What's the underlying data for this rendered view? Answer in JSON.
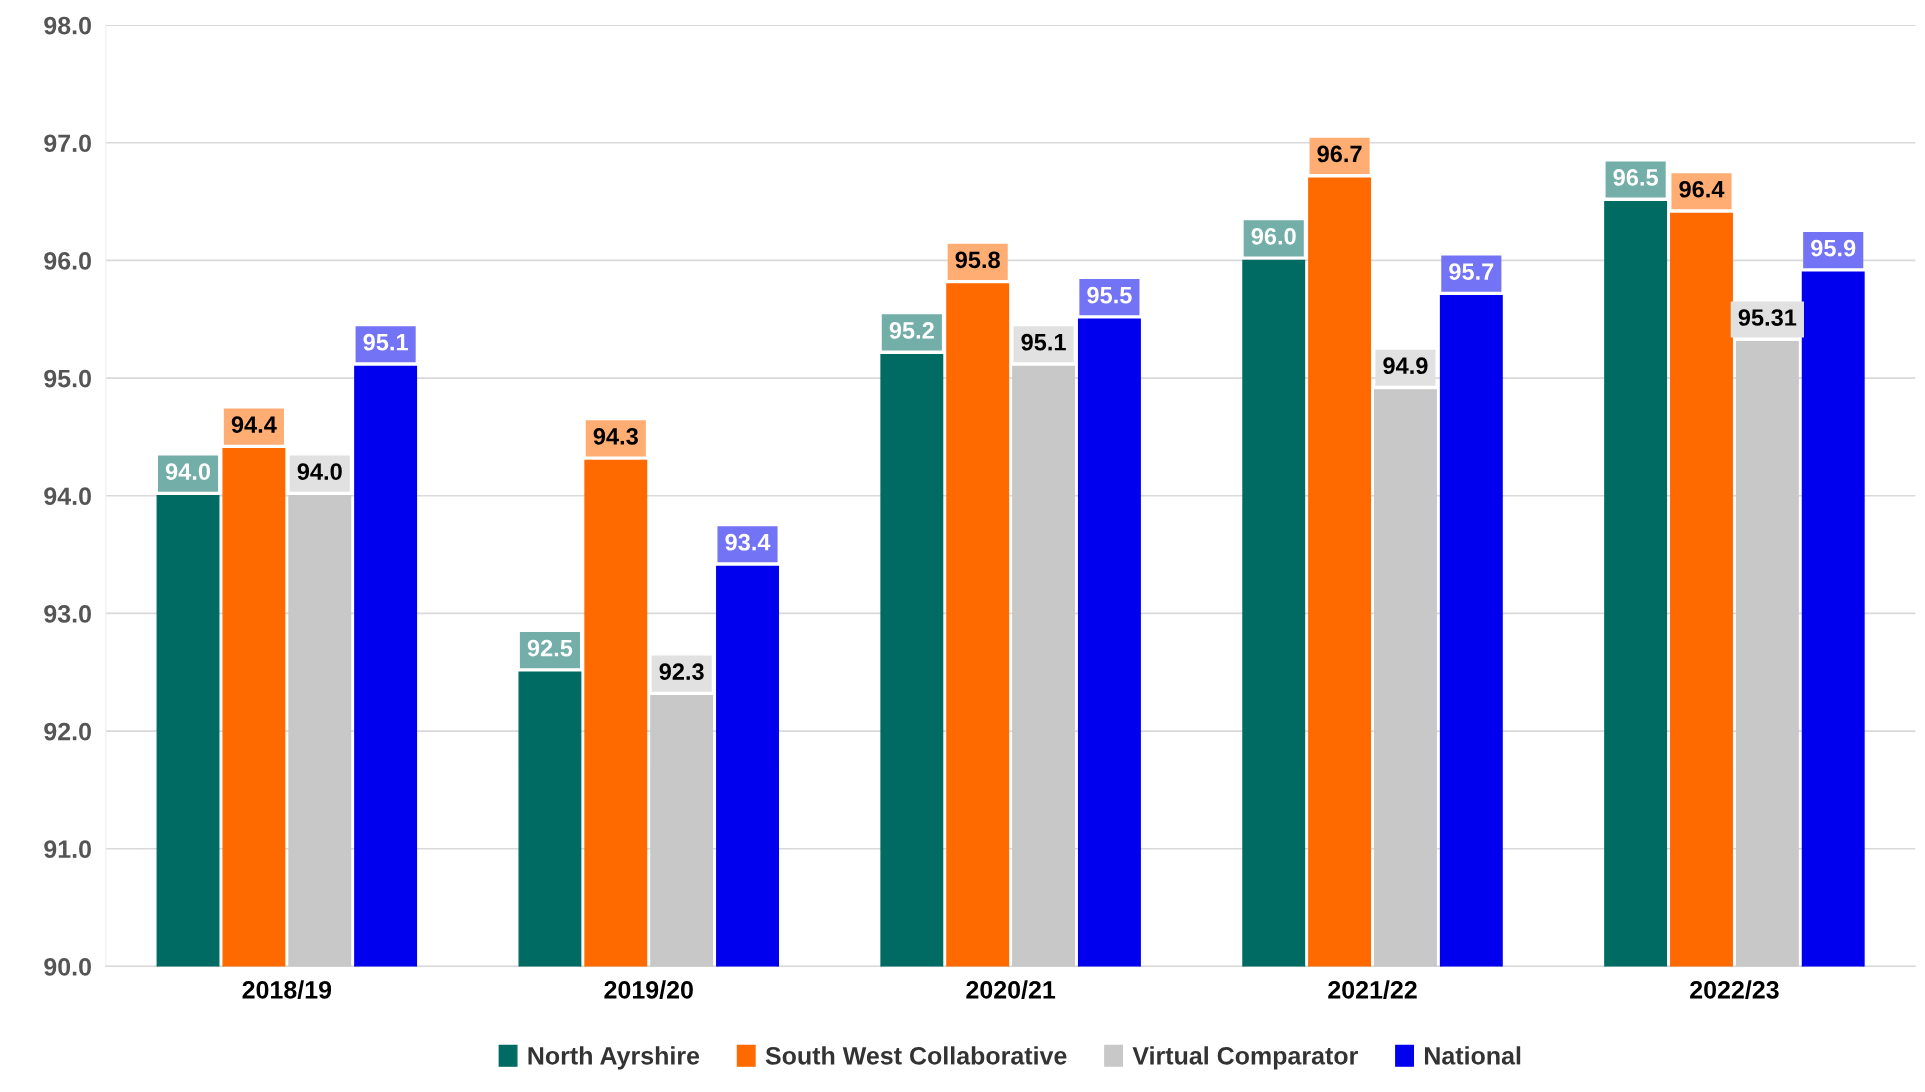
{
  "chart_data": {
    "type": "bar",
    "categories": [
      "2018/19",
      "2019/20",
      "2020/21",
      "2021/22",
      "2022/23"
    ],
    "series": [
      {
        "name": "North Ayrshire",
        "color": "#006b63",
        "values": [
          94.0,
          92.5,
          95.2,
          96.0,
          96.5
        ],
        "value_labels": [
          "94.0",
          "92.5",
          "95.2",
          "96.0",
          "96.5"
        ]
      },
      {
        "name": "South West Collaborative",
        "color": "#ff6a00",
        "values": [
          94.4,
          94.3,
          95.8,
          96.7,
          96.4
        ],
        "value_labels": [
          "94.4",
          "94.3",
          "95.8",
          "96.7",
          "96.4"
        ]
      },
      {
        "name": "Virtual Comparator",
        "color": "#c8c8c8",
        "values": [
          94.0,
          92.3,
          95.1,
          94.9,
          95.31
        ],
        "value_labels": [
          "94.0",
          "92.3",
          "95.1",
          "94.9",
          "95.31"
        ]
      },
      {
        "name": "National",
        "color": "#0000ee",
        "values": [
          95.1,
          93.4,
          95.5,
          95.7,
          95.9
        ],
        "value_labels": [
          "95.1",
          "93.4",
          "95.5",
          "95.7",
          "95.9"
        ]
      }
    ],
    "ylim": [
      90,
      98
    ],
    "yticks": [
      {
        "value": 90,
        "label": "90.0"
      },
      {
        "value": 91,
        "label": "91.0"
      },
      {
        "value": 92,
        "label": "92.0"
      },
      {
        "value": 93,
        "label": "93.0"
      },
      {
        "value": 94,
        "label": "94.0"
      },
      {
        "value": 95,
        "label": "95.0"
      },
      {
        "value": 96,
        "label": "96.0"
      },
      {
        "value": 97,
        "label": "97.0"
      },
      {
        "value": 98,
        "label": "98.0"
      }
    ],
    "grid": "y",
    "legend": "bottom"
  }
}
